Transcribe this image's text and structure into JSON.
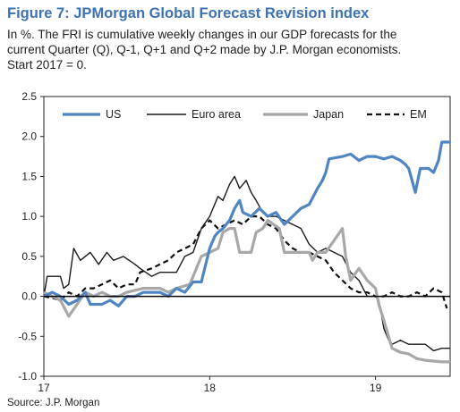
{
  "header": {
    "title": "Figure 7:  JPMorgan Global Forecast Revision index",
    "subtitle_lines": [
      "In %. The FRI is cumulative weekly changes in our GDP forecasts for the",
      "current Quarter (Q), Q-1, Q+1 and Q+2 made by J.P. Morgan economists.",
      "Start 2017 = 0."
    ]
  },
  "footer": {
    "source": "Source: J.P. Morgan"
  },
  "chart_data": {
    "type": "line",
    "xlim": [
      0,
      2.45
    ],
    "ylim": [
      -1.0,
      2.5
    ],
    "x_ticks": [
      {
        "value": 0,
        "label": "17"
      },
      {
        "value": 1,
        "label": "18"
      },
      {
        "value": 2,
        "label": "19"
      }
    ],
    "y_ticks": [
      {
        "value": 2.5,
        "label": "2.5"
      },
      {
        "value": 2.0,
        "label": "2.0"
      },
      {
        "value": 1.5,
        "label": "1.5"
      },
      {
        "value": 1.0,
        "label": "1.0"
      },
      {
        "value": 0.5,
        "label": "0.5"
      },
      {
        "value": 0.0,
        "label": "0.0"
      },
      {
        "value": -0.5,
        "label": "-0.5"
      },
      {
        "value": -1.0,
        "label": "-1.0"
      }
    ],
    "grid": false,
    "legend": "top",
    "series": [
      {
        "name": "US",
        "color": "#4f86c2",
        "style": "solid-thick",
        "points": [
          [
            0,
            0.0
          ],
          [
            0.05,
            0.05
          ],
          [
            0.1,
            0.0
          ],
          [
            0.15,
            -0.1
          ],
          [
            0.2,
            -0.05
          ],
          [
            0.25,
            0.05
          ],
          [
            0.28,
            -0.1
          ],
          [
            0.35,
            -0.1
          ],
          [
            0.4,
            -0.05
          ],
          [
            0.45,
            -0.12
          ],
          [
            0.5,
            0.0
          ],
          [
            0.55,
            0.0
          ],
          [
            0.6,
            0.05
          ],
          [
            0.7,
            0.05
          ],
          [
            0.75,
            0.0
          ],
          [
            0.8,
            0.1
          ],
          [
            0.85,
            0.05
          ],
          [
            0.9,
            0.18
          ],
          [
            0.95,
            0.18
          ],
          [
            1.0,
            0.6
          ],
          [
            1.03,
            0.75
          ],
          [
            1.05,
            0.8
          ],
          [
            1.08,
            0.85
          ],
          [
            1.12,
            0.95
          ],
          [
            1.15,
            1.1
          ],
          [
            1.18,
            1.2
          ],
          [
            1.2,
            1.05
          ],
          [
            1.25,
            1.0
          ],
          [
            1.3,
            1.1
          ],
          [
            1.35,
            1.0
          ],
          [
            1.4,
            1.05
          ],
          [
            1.45,
            0.9
          ],
          [
            1.5,
            1.0
          ],
          [
            1.55,
            1.1
          ],
          [
            1.6,
            1.15
          ],
          [
            1.65,
            1.35
          ],
          [
            1.68,
            1.45
          ],
          [
            1.7,
            1.55
          ],
          [
            1.72,
            1.72
          ],
          [
            1.8,
            1.75
          ],
          [
            1.85,
            1.78
          ],
          [
            1.9,
            1.7
          ],
          [
            1.95,
            1.75
          ],
          [
            2.0,
            1.75
          ],
          [
            2.05,
            1.72
          ],
          [
            2.1,
            1.75
          ],
          [
            2.15,
            1.7
          ],
          [
            2.18,
            1.65
          ],
          [
            2.2,
            1.6
          ],
          [
            2.22,
            1.45
          ],
          [
            2.24,
            1.3
          ],
          [
            2.27,
            1.6
          ],
          [
            2.32,
            1.6
          ],
          [
            2.35,
            1.55
          ],
          [
            2.38,
            1.7
          ],
          [
            2.4,
            1.93
          ],
          [
            2.45,
            1.93
          ]
        ]
      },
      {
        "name": "Euro area",
        "color": "#1a1a1a",
        "style": "solid-thin",
        "points": [
          [
            0,
            0.0
          ],
          [
            0.02,
            0.25
          ],
          [
            0.1,
            0.25
          ],
          [
            0.12,
            0.1
          ],
          [
            0.15,
            0.15
          ],
          [
            0.18,
            0.6
          ],
          [
            0.22,
            0.45
          ],
          [
            0.28,
            0.55
          ],
          [
            0.33,
            0.4
          ],
          [
            0.38,
            0.55
          ],
          [
            0.42,
            0.45
          ],
          [
            0.48,
            0.5
          ],
          [
            0.55,
            0.4
          ],
          [
            0.58,
            0.35
          ],
          [
            0.65,
            0.25
          ],
          [
            0.7,
            0.3
          ],
          [
            0.8,
            0.3
          ],
          [
            0.85,
            0.5
          ],
          [
            0.9,
            0.55
          ],
          [
            0.95,
            0.85
          ],
          [
            1.0,
            1.0
          ],
          [
            1.05,
            1.25
          ],
          [
            1.08,
            1.2
          ],
          [
            1.12,
            1.4
          ],
          [
            1.15,
            1.5
          ],
          [
            1.18,
            1.35
          ],
          [
            1.22,
            1.45
          ],
          [
            1.25,
            1.3
          ],
          [
            1.28,
            1.2
          ],
          [
            1.32,
            1.05
          ],
          [
            1.35,
            1.0
          ],
          [
            1.4,
            1.0
          ],
          [
            1.45,
            0.95
          ],
          [
            1.5,
            0.9
          ],
          [
            1.55,
            0.85
          ],
          [
            1.6,
            0.65
          ],
          [
            1.65,
            0.55
          ],
          [
            1.7,
            0.6
          ],
          [
            1.75,
            0.55
          ],
          [
            1.8,
            0.5
          ],
          [
            1.85,
            0.3
          ],
          [
            1.9,
            0.2
          ],
          [
            1.95,
            0.0
          ],
          [
            2.0,
            0.0
          ],
          [
            2.02,
            -0.05
          ],
          [
            2.05,
            -0.4
          ],
          [
            2.08,
            -0.55
          ],
          [
            2.1,
            -0.6
          ],
          [
            2.15,
            -0.55
          ],
          [
            2.2,
            -0.6
          ],
          [
            2.25,
            -0.6
          ],
          [
            2.3,
            -0.6
          ],
          [
            2.35,
            -0.68
          ],
          [
            2.4,
            -0.65
          ],
          [
            2.45,
            -0.65
          ]
        ]
      },
      {
        "name": "Japan",
        "color": "#a8a8a8",
        "style": "solid-thick",
        "points": [
          [
            0,
            0.05
          ],
          [
            0.05,
            0.0
          ],
          [
            0.1,
            -0.05
          ],
          [
            0.15,
            -0.25
          ],
          [
            0.2,
            -0.1
          ],
          [
            0.25,
            0.05
          ],
          [
            0.3,
            0.0
          ],
          [
            0.35,
            0.05
          ],
          [
            0.4,
            0.0
          ],
          [
            0.45,
            0.0
          ],
          [
            0.5,
            0.05
          ],
          [
            0.6,
            0.1
          ],
          [
            0.7,
            0.1
          ],
          [
            0.75,
            0.05
          ],
          [
            0.8,
            0.1
          ],
          [
            0.88,
            0.15
          ],
          [
            0.95,
            0.5
          ],
          [
            1.0,
            0.55
          ],
          [
            1.05,
            0.6
          ],
          [
            1.08,
            0.8
          ],
          [
            1.12,
            0.85
          ],
          [
            1.15,
            0.85
          ],
          [
            1.18,
            0.55
          ],
          [
            1.25,
            0.55
          ],
          [
            1.28,
            0.8
          ],
          [
            1.32,
            0.85
          ],
          [
            1.35,
            0.95
          ],
          [
            1.42,
            0.85
          ],
          [
            1.45,
            0.55
          ],
          [
            1.5,
            0.55
          ],
          [
            1.6,
            0.55
          ],
          [
            1.62,
            0.45
          ],
          [
            1.65,
            0.55
          ],
          [
            1.7,
            0.55
          ],
          [
            1.75,
            0.7
          ],
          [
            1.8,
            0.85
          ],
          [
            1.82,
            0.5
          ],
          [
            1.85,
            0.2
          ],
          [
            1.9,
            0.35
          ],
          [
            1.95,
            0.2
          ],
          [
            2.0,
            0.1
          ],
          [
            2.02,
            -0.1
          ],
          [
            2.05,
            -0.3
          ],
          [
            2.1,
            -0.65
          ],
          [
            2.15,
            -0.7
          ],
          [
            2.2,
            -0.72
          ],
          [
            2.25,
            -0.78
          ],
          [
            2.3,
            -0.8
          ],
          [
            2.4,
            -0.82
          ],
          [
            2.45,
            -0.82
          ]
        ]
      },
      {
        "name": "EM",
        "color": "#111111",
        "style": "dashed",
        "points": [
          [
            0,
            0.0
          ],
          [
            0.05,
            -0.02
          ],
          [
            0.1,
            -0.05
          ],
          [
            0.15,
            0.05
          ],
          [
            0.2,
            0.0
          ],
          [
            0.25,
            0.1
          ],
          [
            0.3,
            0.1
          ],
          [
            0.35,
            0.15
          ],
          [
            0.4,
            0.2
          ],
          [
            0.45,
            0.1
          ],
          [
            0.5,
            0.15
          ],
          [
            0.55,
            0.15
          ],
          [
            0.58,
            0.3
          ],
          [
            0.65,
            0.35
          ],
          [
            0.7,
            0.4
          ],
          [
            0.75,
            0.45
          ],
          [
            0.8,
            0.55
          ],
          [
            0.85,
            0.6
          ],
          [
            0.9,
            0.65
          ],
          [
            0.95,
            0.85
          ],
          [
            1.0,
            0.95
          ],
          [
            1.05,
            0.85
          ],
          [
            1.1,
            0.9
          ],
          [
            1.15,
            0.95
          ],
          [
            1.2,
            0.9
          ],
          [
            1.25,
            1.0
          ],
          [
            1.3,
            1.0
          ],
          [
            1.35,
            0.9
          ],
          [
            1.4,
            0.85
          ],
          [
            1.45,
            0.7
          ],
          [
            1.5,
            0.6
          ],
          [
            1.55,
            0.55
          ],
          [
            1.6,
            0.55
          ],
          [
            1.65,
            0.5
          ],
          [
            1.7,
            0.45
          ],
          [
            1.75,
            0.3
          ],
          [
            1.8,
            0.2
          ],
          [
            1.85,
            0.1
          ],
          [
            1.9,
            0.05
          ],
          [
            1.95,
            0.05
          ],
          [
            2.0,
            0.0
          ],
          [
            2.05,
            0.0
          ],
          [
            2.1,
            0.05
          ],
          [
            2.15,
            0.0
          ],
          [
            2.2,
            0.0
          ],
          [
            2.25,
            0.05
          ],
          [
            2.3,
            0.0
          ],
          [
            2.35,
            0.1
          ],
          [
            2.4,
            0.05
          ],
          [
            2.43,
            -0.15
          ]
        ]
      }
    ]
  }
}
